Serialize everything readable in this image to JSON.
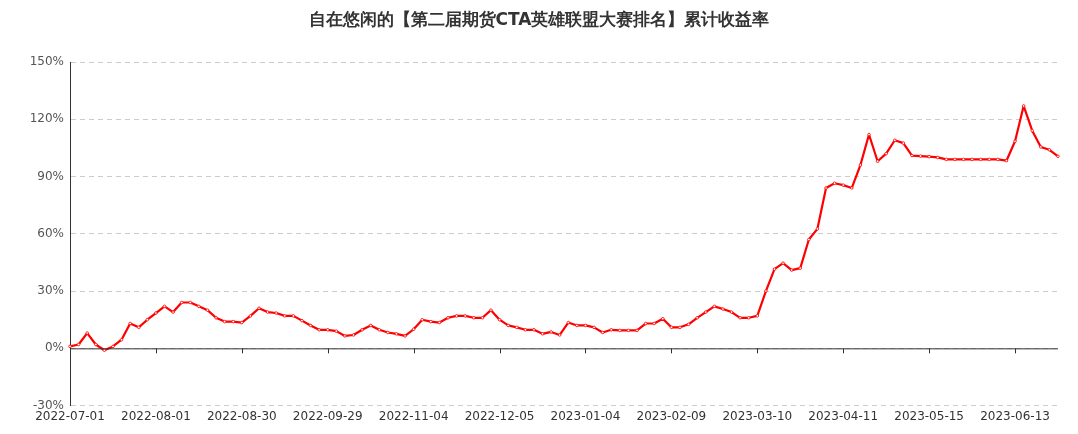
{
  "chart_data": {
    "type": "line",
    "title": "自在悠闲的【第二届期货CTA英雄联盟大赛排名】累计收益率",
    "categories": [
      "2022-07-01",
      null,
      null,
      null,
      null,
      null,
      null,
      null,
      null,
      null,
      "2022-08-01",
      null,
      null,
      null,
      null,
      null,
      null,
      null,
      null,
      null,
      "2022-08-30",
      null,
      null,
      null,
      null,
      null,
      null,
      null,
      null,
      null,
      "2022-09-29",
      null,
      null,
      null,
      null,
      null,
      null,
      null,
      null,
      null,
      "2022-11-04",
      null,
      null,
      null,
      null,
      null,
      null,
      null,
      null,
      null,
      "2022-12-05",
      null,
      null,
      null,
      null,
      null,
      null,
      null,
      null,
      null,
      "2023-01-04",
      null,
      null,
      null,
      null,
      null,
      null,
      null,
      null,
      null,
      "2023-02-09",
      null,
      null,
      null,
      null,
      null,
      null,
      null,
      null,
      null,
      "2023-03-10",
      null,
      null,
      null,
      null,
      null,
      null,
      null,
      null,
      null,
      "2023-04-11",
      null,
      null,
      null,
      null,
      null,
      null,
      null,
      null,
      null,
      "2023-05-15",
      null,
      null,
      null,
      null,
      null,
      null,
      null,
      null,
      null,
      "2023-06-13",
      null,
      null,
      null,
      null,
      null
    ],
    "series": [
      {
        "color": "#ff0000",
        "values": [
          1,
          2,
          8,
          2,
          -1,
          1,
          4.5,
          13,
          11,
          15,
          18.5,
          22,
          19,
          24,
          24,
          22,
          20,
          16,
          14,
          14,
          13.5,
          17,
          21,
          19,
          18.5,
          17,
          17,
          14.5,
          12,
          9.7,
          9.7,
          9,
          6.5,
          7,
          9.7,
          12,
          9.7,
          8.3,
          7.6,
          6.5,
          10,
          15,
          14,
          13.5,
          16,
          17,
          17,
          16,
          16,
          20,
          15,
          12,
          11,
          9.7,
          9.7,
          7.6,
          8.6,
          7,
          13.5,
          12,
          12,
          11,
          8.3,
          9.7,
          9.4,
          9.4,
          9.4,
          13,
          13,
          15.5,
          11,
          11,
          12.6,
          16,
          19,
          22,
          20.6,
          19,
          16,
          16,
          17,
          30,
          41.5,
          44.6,
          41,
          42,
          57,
          62.6,
          84,
          86.5,
          85.5,
          84,
          96,
          112,
          98,
          102,
          109,
          107.5,
          101,
          100.7,
          100.4,
          100,
          99,
          99,
          99,
          99,
          99,
          99,
          99,
          98.3,
          108.5,
          127,
          114,
          105.5,
          104,
          100.6
        ]
      }
    ],
    "ylim": [
      -30,
      150
    ],
    "yticks": [
      {
        "value": -30,
        "label": "-30%"
      },
      {
        "value": 0,
        "label": "0%"
      },
      {
        "value": 30,
        "label": "30%"
      },
      {
        "value": 60,
        "label": "60%"
      },
      {
        "value": 90,
        "label": "90%"
      },
      {
        "value": 120,
        "label": "120%"
      },
      {
        "value": 150,
        "label": "150%"
      }
    ],
    "grid": "y",
    "marker": "circle",
    "line_style": "solid"
  }
}
